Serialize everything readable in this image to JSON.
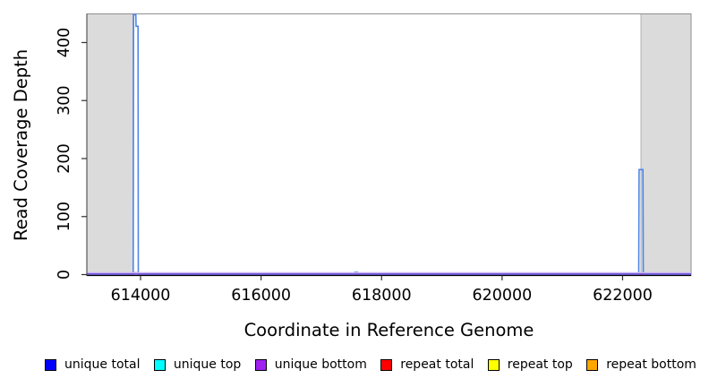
{
  "chart_data": {
    "type": "line",
    "title": "",
    "xlabel": "Coordinate in Reference Genome",
    "ylabel": "Read Coverage Depth",
    "xlim": [
      613108,
      623137
    ],
    "ylim": [
      0,
      450
    ],
    "x_ticks": [
      "614000",
      "616000",
      "618000",
      "620000",
      "622000"
    ],
    "x_tick_values": [
      614000,
      616000,
      618000,
      620000,
      622000
    ],
    "y_ticks": [
      "0",
      "100",
      "200",
      "300",
      "400"
    ],
    "y_tick_values": [
      0,
      100,
      200,
      300,
      400
    ],
    "grid": false,
    "legend_position": "bottom",
    "plot_bg": "#FFFFFF",
    "masked_region_color": "#DBDBDB",
    "masked_region_border": "#ABABAB",
    "masked_regions": [
      [
        613108,
        613874
      ],
      [
        622305,
        623137
      ]
    ],
    "series": [
      {
        "name": "repeat total",
        "color": "#FF0000",
        "points": [
          [
            613108,
            0
          ],
          [
            613888,
            0
          ],
          [
            613892,
            3
          ],
          [
            613955,
            3
          ],
          [
            613959,
            0
          ],
          [
            623137,
            0
          ]
        ]
      },
      {
        "name": "unique total",
        "color": "#4F86E8",
        "points": [
          [
            613108,
            0
          ],
          [
            613878,
            0
          ],
          [
            613884,
            448
          ],
          [
            613921,
            448
          ],
          [
            613925,
            428
          ],
          [
            613958,
            428
          ],
          [
            613963,
            0
          ],
          [
            617545,
            0
          ],
          [
            617557,
            4
          ],
          [
            617603,
            4
          ],
          [
            617615,
            0
          ],
          [
            622268,
            0
          ],
          [
            622274,
            181
          ],
          [
            622337,
            181
          ],
          [
            622343,
            0
          ],
          [
            623137,
            0
          ]
        ]
      },
      {
        "name": "unique bottom baseline",
        "color": "#7A5CE0",
        "halo_color": "#C9B6F2",
        "points": [
          [
            613108,
            0
          ],
          [
            623137,
            0
          ]
        ]
      }
    ],
    "legend": [
      {
        "label": "unique total",
        "color": "#0000FF"
      },
      {
        "label": "unique top",
        "color": "#00FFFF"
      },
      {
        "label": "unique bottom",
        "color": "#A020F0"
      },
      {
        "label": "repeat total",
        "color": "#FF0000"
      },
      {
        "label": "repeat top",
        "color": "#FFFF00"
      },
      {
        "label": "repeat bottom",
        "color": "#FFA500"
      }
    ]
  }
}
